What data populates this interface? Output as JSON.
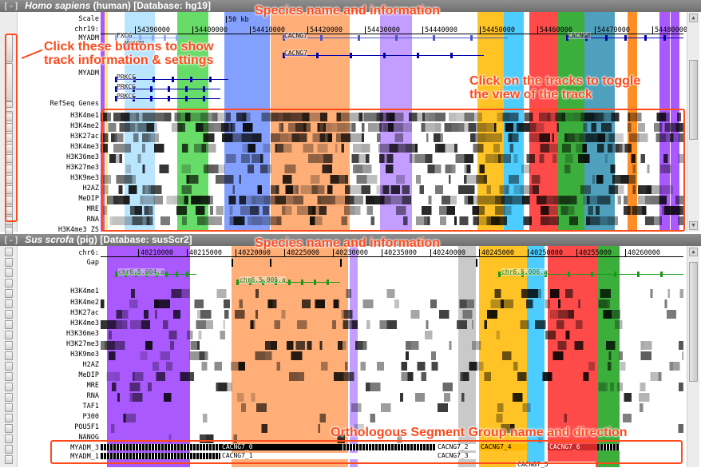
{
  "panels": [
    {
      "toggle": "[-]",
      "species": "Homo sapiens",
      "common": "(human)",
      "database": "[Database: hg19]",
      "labels": [
        "Scale",
        "chr19:",
        "MYADM",
        "",
        "",
        "MYADM",
        "",
        "",
        "",
        "",
        "RefSeq Genes",
        "H3K4me1",
        "H3K4me2",
        "H3K27ac",
        "H3K4me3",
        "H3K36me3",
        "H3K27me3",
        "H3K9me3",
        "H2AZ",
        "MeDIP",
        "MRE",
        "RNA",
        "H3K4me3 ZS"
      ],
      "scale_label": "50 kb",
      "ticks": [
        "54390000",
        "54400000",
        "54410000",
        "54420000",
        "54430000",
        "54440000",
        "54450000",
        "54460000",
        "54470000",
        "54480000"
      ],
      "genes": [
        "FXCG",
        "MYADM",
        "CACNG7",
        "CACNG7",
        "CACNG8",
        "PRKCG",
        "PRKCG",
        "PRKCG"
      ]
    },
    {
      "toggle": "[-]",
      "species": "Sus scrofa",
      "common": "(pig)",
      "database": "[Database: susScr2]",
      "labels": [
        "chr6:",
        "Gap",
        "",
        "",
        "",
        "H3K4me1",
        "H3K4me2",
        "H3K27ac",
        "H3K4me3",
        "H3K36me3",
        "H3K27me3",
        "H3K9me3",
        "H2AZ",
        "MeDIP",
        "MRE",
        "RNA",
        "TAF1",
        "P300",
        "POU5F1",
        "NANOG",
        "",
        "MYADM_3",
        "MYADM_1"
      ],
      "ticks": [
        "40210000",
        "40215000",
        "40220000",
        "40225000",
        "40230000",
        "40235000",
        "40240000",
        "40245000",
        "40250000",
        "40255000",
        "40260000"
      ],
      "genes": [
        "chr6.5.004.a",
        "chr6.5.005.a",
        "chr6.5.006.a"
      ],
      "segments": [
        "CACNG7_0",
        "CACNG7_2",
        "CACNG7_4",
        "CACNG7_6",
        "CACNG7_1",
        "CACNG7_3",
        "CACNG7_5"
      ]
    }
  ],
  "annotations": {
    "species_info_1": "Species name and information",
    "buttons_line1": "Click these buttons to show",
    "buttons_line2": "track information & settings",
    "tracks_line1": "Click on the tracks to toggle",
    "tracks_line2": "the view of the track",
    "species_info_2": "Species name and information",
    "segment_group": "Orthologous Segment Group name and direction"
  },
  "colors": {
    "accent_annotation": "#ff4a1c",
    "header_bg": "#7a7a7a",
    "purple": "#9b3cff",
    "light_blue": "#aee0ff",
    "green": "#4dd64d",
    "blue": "#6e8fff",
    "orange": "#ffa060",
    "lavender": "#b88cff",
    "gold": "#ffb800",
    "cyan": "#2ec4ff",
    "red": "#ff2a2a",
    "teal": "#2f8fb0",
    "dark_green": "#1aa01a"
  }
}
